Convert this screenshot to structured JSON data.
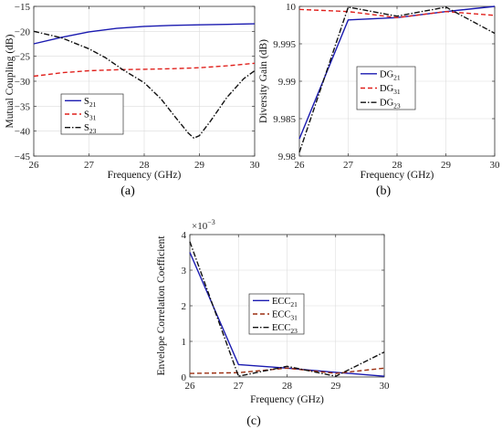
{
  "chart_data": [
    {
      "panel": "(a)",
      "type": "line",
      "xlabel": "Frequency (GHz)",
      "ylabel": "Mutual Coupling (dB)",
      "xlim": [
        26,
        30
      ],
      "ylim": [
        -45,
        -15
      ],
      "xticks": [
        26,
        27,
        28,
        29,
        30
      ],
      "yticks": [
        -45,
        -40,
        -35,
        -30,
        -25,
        -20,
        -15
      ],
      "yticklabels": [
        "−45",
        "−40",
        "−35",
        "−30",
        "−25",
        "−20",
        "−15"
      ],
      "grid": true,
      "legend_position": "center-left",
      "series": [
        {
          "name": "S",
          "sub": "21",
          "color": "#1a1ab0",
          "dash": "solid",
          "x": [
            26,
            26.5,
            27,
            27.5,
            28,
            28.5,
            29,
            29.5,
            30
          ],
          "y": [
            -22.5,
            -21.2,
            -20.1,
            -19.4,
            -19.0,
            -18.8,
            -18.7,
            -18.6,
            -18.5
          ]
        },
        {
          "name": "S",
          "sub": "31",
          "color": "#e0201c",
          "dash": "dashed",
          "x": [
            26,
            26.5,
            27,
            27.5,
            28,
            28.5,
            29,
            29.5,
            30
          ],
          "y": [
            -29.0,
            -28.3,
            -27.9,
            -27.7,
            -27.6,
            -27.5,
            -27.3,
            -26.9,
            -26.4
          ]
        },
        {
          "name": "S",
          "sub": "23",
          "color": "#111111",
          "dash": "dashdot",
          "x": [
            26,
            26.5,
            27,
            27.3,
            27.6,
            28,
            28.3,
            28.6,
            28.8,
            28.9,
            29.0,
            29.2,
            29.5,
            29.8,
            30
          ],
          "y": [
            -20.0,
            -21.3,
            -23.5,
            -25.3,
            -27.6,
            -30.3,
            -33.5,
            -37.7,
            -40.4,
            -41.4,
            -40.9,
            -38.0,
            -33.2,
            -29.5,
            -27.9
          ]
        }
      ]
    },
    {
      "panel": "(b)",
      "type": "line",
      "xlabel": "Frequency (GHz)",
      "ylabel": "Diversity Gain (dB)",
      "xlim": [
        26,
        30
      ],
      "ylim": [
        9.98,
        10
      ],
      "xticks": [
        26,
        27,
        28,
        29,
        30
      ],
      "yticks": [
        9.98,
        9.985,
        9.99,
        9.995,
        10
      ],
      "yticklabels": [
        "9.98",
        "9.985",
        "9.99",
        "9.995",
        "10"
      ],
      "grid": true,
      "legend_position": "center-left",
      "series": [
        {
          "name": "DG",
          "sub": "21",
          "color": "#1a1ab0",
          "dash": "solid",
          "x": [
            26,
            27,
            28,
            29,
            30
          ],
          "y": [
            9.9823,
            9.9982,
            9.9985,
            9.9993,
            10.0
          ]
        },
        {
          "name": "DG",
          "sub": "31",
          "color": "#e0201c",
          "dash": "dashed",
          "x": [
            26,
            27,
            28,
            29,
            30
          ],
          "y": [
            9.9996,
            9.9993,
            9.9985,
            9.9993,
            9.9988
          ]
        },
        {
          "name": "DG",
          "sub": "23",
          "color": "#111111",
          "dash": "dashdot",
          "x": [
            26,
            27,
            28,
            29,
            30
          ],
          "y": [
            9.9805,
            9.9999,
            9.9987,
            9.9999,
            9.9964
          ]
        }
      ]
    },
    {
      "panel": "(c)",
      "type": "line",
      "xlabel": "Frequency (GHz)",
      "ylabel": "Envelope Correlation Coefficient",
      "multiplier": "10",
      "multiplier_exp": "−3",
      "multiplier_prefix": "×",
      "xlim": [
        26,
        30
      ],
      "ylim": [
        0,
        0.004
      ],
      "xticks": [
        26,
        27,
        28,
        29,
        30
      ],
      "yticks": [
        0,
        0.001,
        0.002,
        0.003,
        0.004
      ],
      "yticklabels": [
        "0",
        "1",
        "2",
        "3",
        "4"
      ],
      "grid": true,
      "legend_position": "center-right",
      "series": [
        {
          "name": "ECC",
          "sub": "21",
          "color": "#1a1ab0",
          "dash": "solid",
          "x": [
            26,
            27,
            28,
            29,
            30
          ],
          "y": [
            0.0035,
            0.00035,
            0.00025,
            0.00013,
            2e-05
          ]
        },
        {
          "name": "ECC",
          "sub": "31",
          "color": "#9b2e10",
          "dash": "dashed",
          "x": [
            26,
            27,
            28,
            29,
            30
          ],
          "y": [
            0.0001,
            0.00012,
            0.00025,
            0.0001,
            0.00025
          ]
        },
        {
          "name": "ECC",
          "sub": "23",
          "color": "#111111",
          "dash": "dashdot",
          "x": [
            26,
            27,
            28,
            29,
            30
          ],
          "y": [
            0.0038,
            2e-05,
            0.0003,
            2e-05,
            0.0007
          ]
        }
      ]
    }
  ]
}
